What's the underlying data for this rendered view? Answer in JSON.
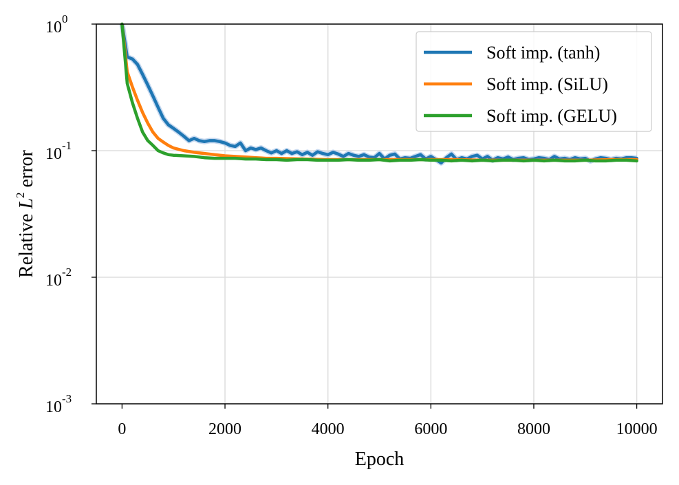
{
  "chart_data": {
    "type": "line",
    "xlabel": "Epoch",
    "ylabel_prefix": "Relative ",
    "ylabel_var": "L",
    "ylabel_sup": "2",
    "ylabel_suffix": " error",
    "yscale": "log",
    "xlim": [
      -500,
      10500
    ],
    "ylim": [
      0.001,
      1
    ],
    "grid": true,
    "legend_position": "top-right",
    "x_ticks": [
      {
        "value": 0,
        "label": "0"
      },
      {
        "value": 2000,
        "label": "2000"
      },
      {
        "value": 4000,
        "label": "4000"
      },
      {
        "value": 6000,
        "label": "6000"
      },
      {
        "value": 8000,
        "label": "8000"
      },
      {
        "value": 10000,
        "label": "10000"
      }
    ],
    "y_ticks": [
      {
        "value": 1,
        "base": "10",
        "exp": "0"
      },
      {
        "value": 0.1,
        "base": "10",
        "exp": "-1"
      },
      {
        "value": 0.01,
        "base": "10",
        "exp": "-2"
      },
      {
        "value": 0.001,
        "base": "10",
        "exp": "-3"
      }
    ],
    "series": [
      {
        "name": "Soft imp. (tanh)",
        "color": "#1f77b4",
        "band_color": "#aec7e8",
        "x": [
          0,
          100,
          200,
          300,
          400,
          500,
          600,
          700,
          800,
          900,
          1000,
          1100,
          1200,
          1300,
          1400,
          1500,
          1600,
          1700,
          1800,
          1900,
          2000,
          2100,
          2200,
          2300,
          2400,
          2500,
          2600,
          2700,
          2800,
          2900,
          3000,
          3100,
          3200,
          3300,
          3400,
          3500,
          3600,
          3700,
          3800,
          3900,
          4000,
          4100,
          4200,
          4300,
          4400,
          4500,
          4600,
          4700,
          4800,
          4900,
          5000,
          5100,
          5200,
          5300,
          5400,
          5500,
          5600,
          5700,
          5800,
          5900,
          6000,
          6100,
          6200,
          6300,
          6400,
          6500,
          6600,
          6700,
          6800,
          6900,
          7000,
          7100,
          7200,
          7300,
          7400,
          7500,
          7600,
          7700,
          7800,
          7900,
          8000,
          8100,
          8200,
          8300,
          8400,
          8500,
          8600,
          8700,
          8800,
          8900,
          9000,
          9100,
          9200,
          9300,
          9400,
          9500,
          9600,
          9700,
          9800,
          9900,
          10000
        ],
        "values": [
          1.0,
          0.55,
          0.53,
          0.48,
          0.4,
          0.33,
          0.27,
          0.22,
          0.18,
          0.16,
          0.15,
          0.14,
          0.13,
          0.12,
          0.125,
          0.12,
          0.118,
          0.12,
          0.12,
          0.118,
          0.115,
          0.11,
          0.108,
          0.115,
          0.1,
          0.105,
          0.102,
          0.105,
          0.1,
          0.096,
          0.1,
          0.095,
          0.1,
          0.095,
          0.098,
          0.093,
          0.097,
          0.092,
          0.098,
          0.095,
          0.093,
          0.097,
          0.094,
          0.09,
          0.095,
          0.092,
          0.09,
          0.093,
          0.089,
          0.088,
          0.095,
          0.086,
          0.092,
          0.094,
          0.086,
          0.088,
          0.087,
          0.09,
          0.093,
          0.086,
          0.09,
          0.085,
          0.08,
          0.088,
          0.094,
          0.085,
          0.088,
          0.086,
          0.09,
          0.092,
          0.086,
          0.09,
          0.084,
          0.088,
          0.086,
          0.089,
          0.085,
          0.087,
          0.088,
          0.085,
          0.086,
          0.088,
          0.087,
          0.085,
          0.09,
          0.086,
          0.087,
          0.085,
          0.088,
          0.086,
          0.087,
          0.083,
          0.086,
          0.088,
          0.087,
          0.085,
          0.087,
          0.086,
          0.088,
          0.088,
          0.087
        ]
      },
      {
        "name": "Soft imp. (SiLU)",
        "color": "#ff7f0e",
        "x": [
          0,
          100,
          200,
          300,
          400,
          500,
          600,
          700,
          800,
          900,
          1000,
          1200,
          1400,
          1600,
          1800,
          2000,
          2200,
          2400,
          2600,
          2800,
          3000,
          3500,
          4000,
          4500,
          5000,
          5500,
          6000,
          6500,
          7000,
          7500,
          8000,
          8500,
          9000,
          9500,
          10000
        ],
        "values": [
          1.0,
          0.42,
          0.32,
          0.25,
          0.2,
          0.165,
          0.14,
          0.125,
          0.117,
          0.11,
          0.105,
          0.1,
          0.097,
          0.095,
          0.093,
          0.091,
          0.09,
          0.089,
          0.088,
          0.087,
          0.087,
          0.086,
          0.085,
          0.085,
          0.085,
          0.085,
          0.085,
          0.085,
          0.084,
          0.084,
          0.084,
          0.084,
          0.084,
          0.085,
          0.085
        ]
      },
      {
        "name": "Soft imp. (GELU)",
        "color": "#2ca02c",
        "x": [
          0,
          100,
          200,
          300,
          400,
          500,
          600,
          700,
          800,
          900,
          1000,
          1200,
          1400,
          1600,
          1800,
          2000,
          2200,
          2400,
          2600,
          2800,
          3000,
          3200,
          3400,
          3600,
          3800,
          4000,
          4200,
          4400,
          4600,
          4800,
          5000,
          5200,
          5400,
          5600,
          5800,
          6000,
          6200,
          6400,
          6600,
          6800,
          7000,
          7200,
          7400,
          7600,
          7800,
          8000,
          8200,
          8400,
          8600,
          8800,
          9000,
          9200,
          9400,
          9600,
          9800,
          10000
        ],
        "values": [
          1.0,
          0.34,
          0.24,
          0.18,
          0.14,
          0.12,
          0.11,
          0.1,
          0.096,
          0.093,
          0.092,
          0.091,
          0.09,
          0.088,
          0.087,
          0.087,
          0.087,
          0.086,
          0.086,
          0.085,
          0.085,
          0.084,
          0.085,
          0.085,
          0.084,
          0.084,
          0.084,
          0.085,
          0.084,
          0.084,
          0.085,
          0.083,
          0.084,
          0.084,
          0.085,
          0.084,
          0.084,
          0.083,
          0.084,
          0.083,
          0.084,
          0.083,
          0.084,
          0.084,
          0.083,
          0.084,
          0.083,
          0.084,
          0.083,
          0.083,
          0.084,
          0.083,
          0.083,
          0.084,
          0.084,
          0.083
        ]
      }
    ]
  }
}
